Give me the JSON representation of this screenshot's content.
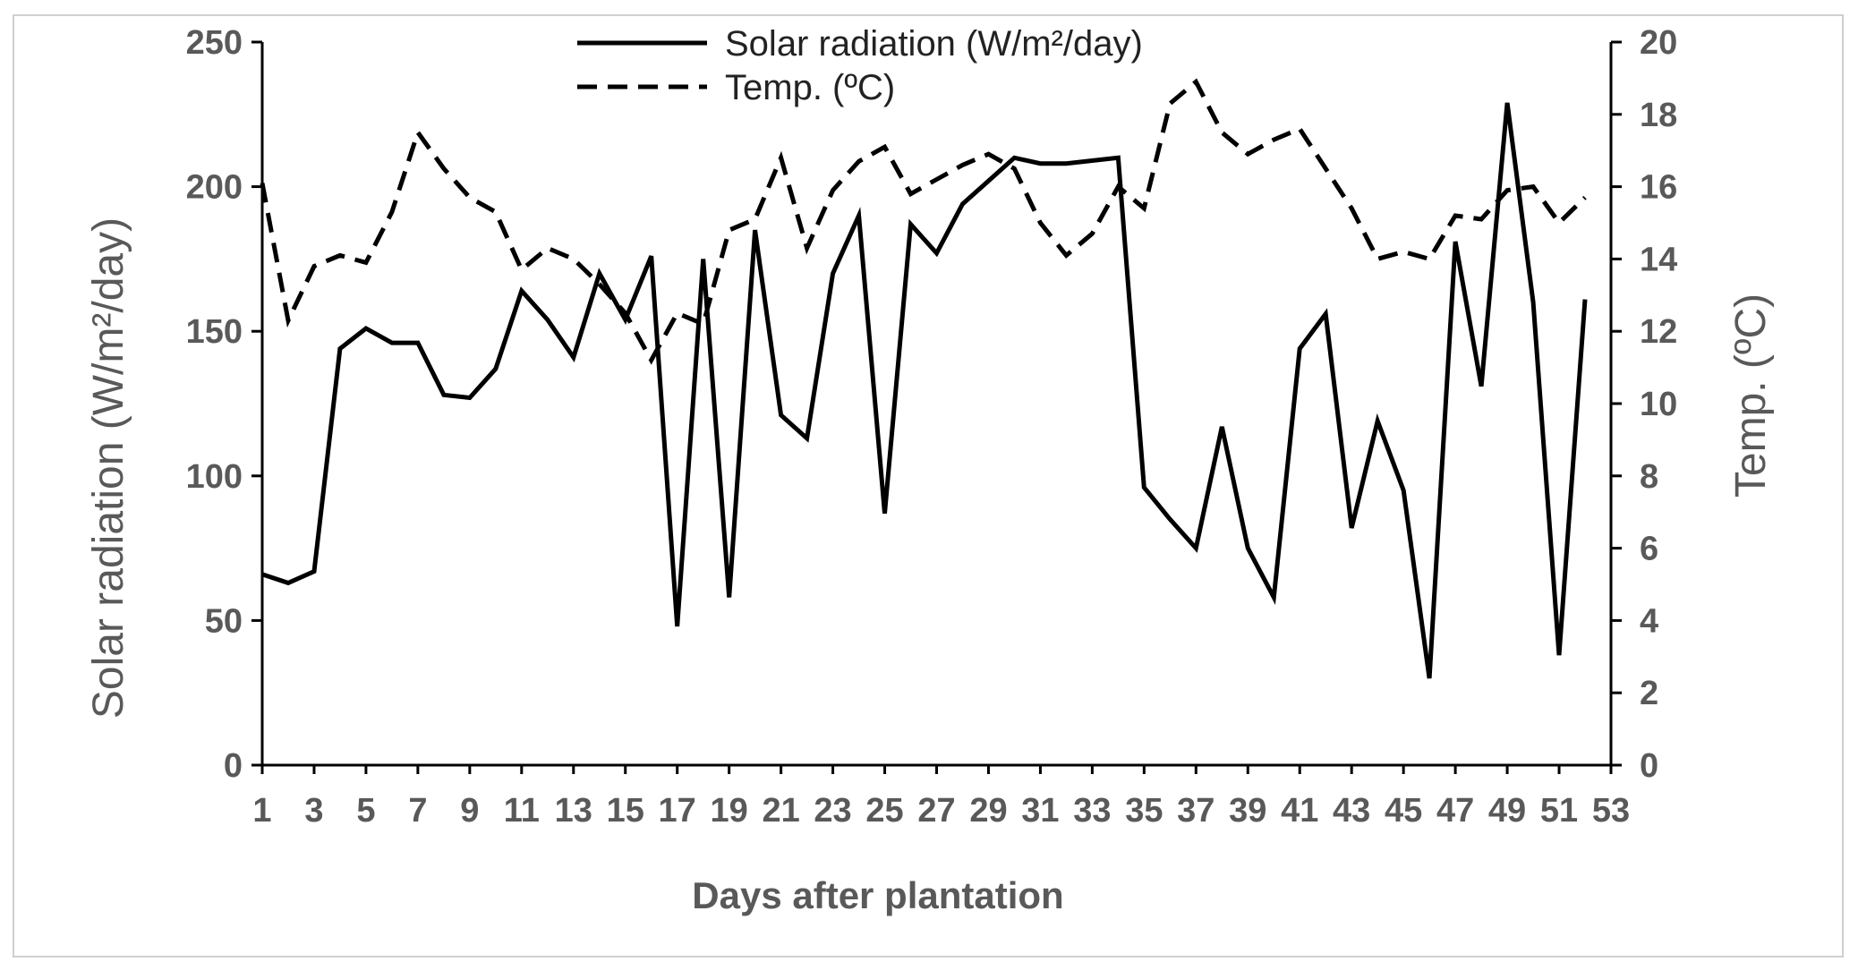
{
  "chart_data": {
    "type": "line",
    "title": "",
    "xlabel": "Days after plantation",
    "ylabel": "Solar radiation (W/m²/day)",
    "y2label": "Temp. (ºC)",
    "x": [
      1,
      2,
      3,
      4,
      5,
      6,
      7,
      8,
      9,
      10,
      11,
      12,
      13,
      14,
      15,
      16,
      17,
      18,
      19,
      20,
      21,
      22,
      23,
      24,
      25,
      26,
      27,
      28,
      29,
      30,
      31,
      32,
      33,
      34,
      35,
      36,
      37,
      38,
      39,
      40,
      41,
      42,
      43,
      44,
      45,
      46,
      47,
      48,
      49,
      50,
      51,
      52
    ],
    "xtick_labels": [
      "1",
      "3",
      "5",
      "7",
      "9",
      "11",
      "13",
      "15",
      "17",
      "19",
      "21",
      "23",
      "25",
      "27",
      "29",
      "31",
      "33",
      "35",
      "37",
      "39",
      "41",
      "43",
      "45",
      "47",
      "49",
      "51",
      "53"
    ],
    "xlim": [
      1,
      53
    ],
    "ylim": [
      0,
      250
    ],
    "yticks": [
      "0",
      "50",
      "100",
      "150",
      "200",
      "250"
    ],
    "y2lim": [
      0,
      20
    ],
    "y2ticks": [
      "0",
      "2",
      "4",
      "6",
      "8",
      "10",
      "12",
      "14",
      "16",
      "18",
      "20"
    ],
    "series": [
      {
        "name": "Solar radiation (W/m²/day)",
        "axis": "left",
        "style": "solid",
        "values": [
          66,
          63,
          67,
          144,
          151,
          146,
          146,
          128,
          127,
          137,
          164,
          154,
          141,
          170,
          154,
          176,
          48,
          175,
          58,
          185,
          121,
          113,
          170,
          190,
          87,
          187,
          177,
          194,
          202,
          210,
          208,
          208,
          209,
          210,
          96,
          85,
          75,
          117,
          75,
          58,
          144,
          156,
          82,
          119,
          95,
          30,
          181,
          131,
          229,
          160,
          38,
          161
        ]
      },
      {
        "name": "Temp. (ºC)",
        "axis": "right",
        "style": "dashed",
        "values": [
          16.1,
          12.3,
          13.8,
          14.1,
          13.9,
          15.3,
          17.5,
          16.5,
          15.7,
          15.3,
          13.7,
          14.3,
          14.0,
          13.3,
          12.5,
          11.2,
          12.5,
          12.2,
          14.8,
          15.1,
          16.8,
          14.3,
          15.9,
          16.7,
          17.1,
          15.8,
          16.2,
          16.6,
          16.9,
          16.5,
          15.0,
          14.1,
          14.7,
          16.0,
          15.4,
          18.3,
          18.9,
          17.5,
          16.9,
          17.3,
          17.6,
          16.5,
          15.4,
          14.0,
          14.2,
          14.0,
          15.2,
          15.1,
          15.9,
          16.0,
          15.0,
          15.7
        ]
      }
    ],
    "legend_position": "top-center",
    "grid": false
  },
  "colors": {
    "solar_line": "#000000",
    "temp_line": "#000000",
    "axis": "#000000",
    "text": "#595959"
  }
}
